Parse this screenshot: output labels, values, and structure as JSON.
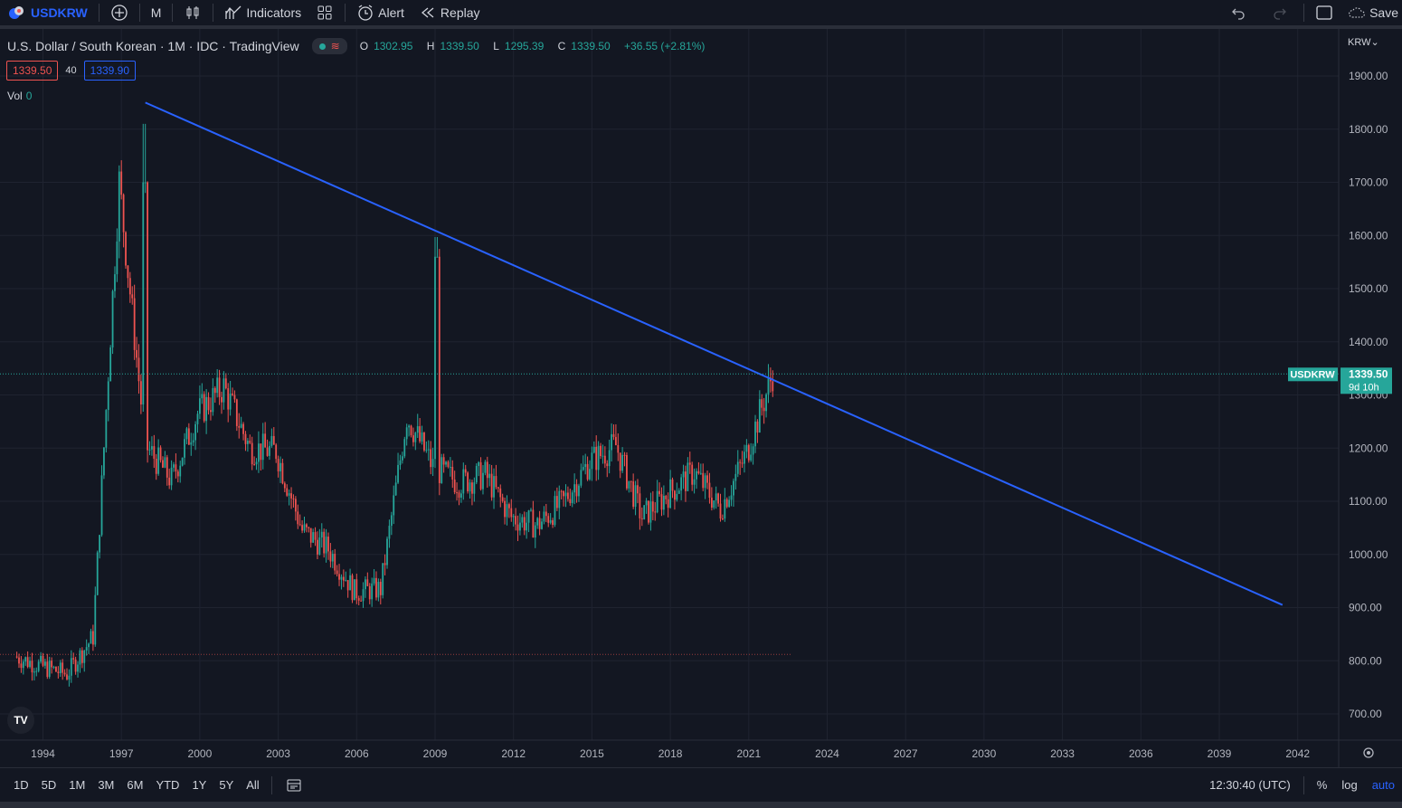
{
  "toolbar": {
    "symbol": "USDKRW",
    "interval": "M",
    "indicators_label": "Indicators",
    "alert_label": "Alert",
    "replay_label": "Replay",
    "save_label": "Save"
  },
  "legend": {
    "title": "U.S. Dollar / South Korean · 1M · IDC · TradingView",
    "open_label": "O",
    "open": "1302.95",
    "high_label": "H",
    "high": "1339.50",
    "low_label": "L",
    "low": "1295.39",
    "close_label": "C",
    "close": "1339.50",
    "change": "+36.55 (+2.81%)",
    "sell_price": "1339.50",
    "spread": "40",
    "buy_price": "1339.90",
    "vol_label": "Vol",
    "vol_value": "0"
  },
  "price_axis": {
    "currency": "KRW",
    "labels": [
      "1900.00",
      "1800.00",
      "1700.00",
      "1600.00",
      "1500.00",
      "1400.00",
      "1300.00",
      "1200.00",
      "1100.00",
      "1000.00",
      "900.00",
      "800.00",
      "700.00"
    ],
    "current_symbol": "USDKRW",
    "current_price": "1339.50",
    "countdown": "9d 10h"
  },
  "time_axis": {
    "labels": [
      "1994",
      "1997",
      "2000",
      "2003",
      "2006",
      "2009",
      "2012",
      "2015",
      "2018",
      "2021",
      "2024",
      "2027",
      "2030",
      "2033",
      "2036",
      "2039",
      "2042"
    ]
  },
  "bottombar": {
    "ranges": [
      "1D",
      "5D",
      "1M",
      "3M",
      "6M",
      "YTD",
      "1Y",
      "5Y",
      "All"
    ],
    "clock": "12:30:40 (UTC)",
    "percent": "%",
    "log": "log",
    "auto": "auto"
  },
  "colors": {
    "background": "#131722",
    "up": "#26a69a",
    "down": "#ef5350",
    "trendline": "#2962ff",
    "grid": "#1f2330"
  },
  "chart_data": {
    "type": "candlestick",
    "interval": "monthly",
    "symbol": "USDKRW",
    "price_range": [
      700,
      1900
    ],
    "yearly_closes": [
      {
        "year": 1993,
        "close": 808
      },
      {
        "year": 1994,
        "close": 790
      },
      {
        "year": 1995,
        "close": 775
      },
      {
        "year": 1996,
        "close": 845
      },
      {
        "year": 1997,
        "close": 1700
      },
      {
        "year": 1998,
        "close": 1205
      },
      {
        "year": 1999,
        "close": 1140
      },
      {
        "year": 2000,
        "close": 1265
      },
      {
        "year": 2001,
        "close": 1315
      },
      {
        "year": 2002,
        "close": 1200
      },
      {
        "year": 2003,
        "close": 1195
      },
      {
        "year": 2004,
        "close": 1045
      },
      {
        "year": 2005,
        "close": 1010
      },
      {
        "year": 2006,
        "close": 930
      },
      {
        "year": 2007,
        "close": 935
      },
      {
        "year": 2008,
        "close": 1260
      },
      {
        "year": 2009,
        "close": 1165
      },
      {
        "year": 2010,
        "close": 1135
      },
      {
        "year": 2011,
        "close": 1150
      },
      {
        "year": 2012,
        "close": 1070
      },
      {
        "year": 2013,
        "close": 1055
      },
      {
        "year": 2014,
        "close": 1100
      },
      {
        "year": 2015,
        "close": 1175
      },
      {
        "year": 2016,
        "close": 1205
      },
      {
        "year": 2017,
        "close": 1070
      },
      {
        "year": 2018,
        "close": 1115
      },
      {
        "year": 2019,
        "close": 1155
      },
      {
        "year": 2020,
        "close": 1085
      },
      {
        "year": 2021,
        "close": 1190
      },
      {
        "year": 2022,
        "close": 1339.5
      }
    ],
    "trendline": {
      "from": {
        "date": "1997-12",
        "price": 1850
      },
      "to": {
        "date": "2041-06",
        "price": 905
      }
    },
    "last_price_line": 1339.5,
    "legend": "none"
  }
}
